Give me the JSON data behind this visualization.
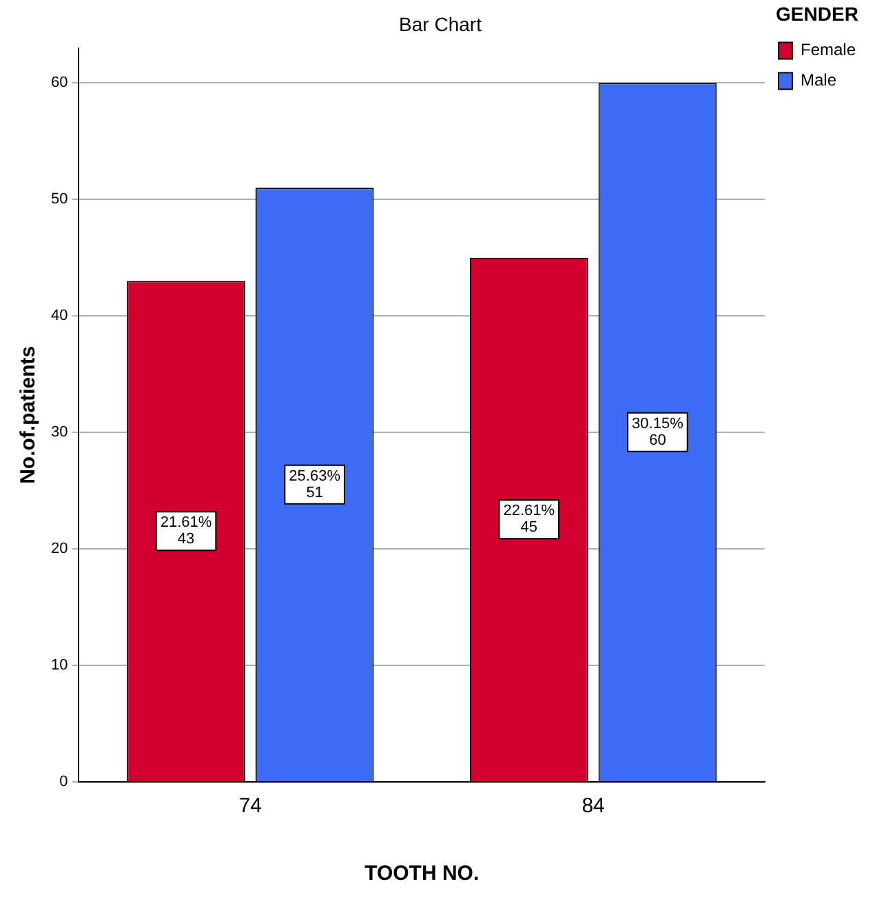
{
  "chart_data": {
    "type": "bar",
    "title": "Bar Chart",
    "xlabel": "TOOTH NO.",
    "ylabel": "No.of.patients",
    "legend_title": "GENDER",
    "categories": [
      "74",
      "84"
    ],
    "series": [
      {
        "name": "Female",
        "color": "#d2002f",
        "values": [
          43,
          45
        ],
        "value_labels": [
          "21.61%\n43",
          "22.61%\n45"
        ]
      },
      {
        "name": "Male",
        "color": "#3b6cf3",
        "values": [
          51,
          60
        ],
        "value_labels": [
          "25.63%\n51",
          "30.15%\n60"
        ]
      }
    ],
    "ylim": [
      0,
      63
    ],
    "yticks": [
      0,
      10,
      20,
      30,
      40,
      50,
      60
    ],
    "grid": "y",
    "legend": "top right"
  }
}
